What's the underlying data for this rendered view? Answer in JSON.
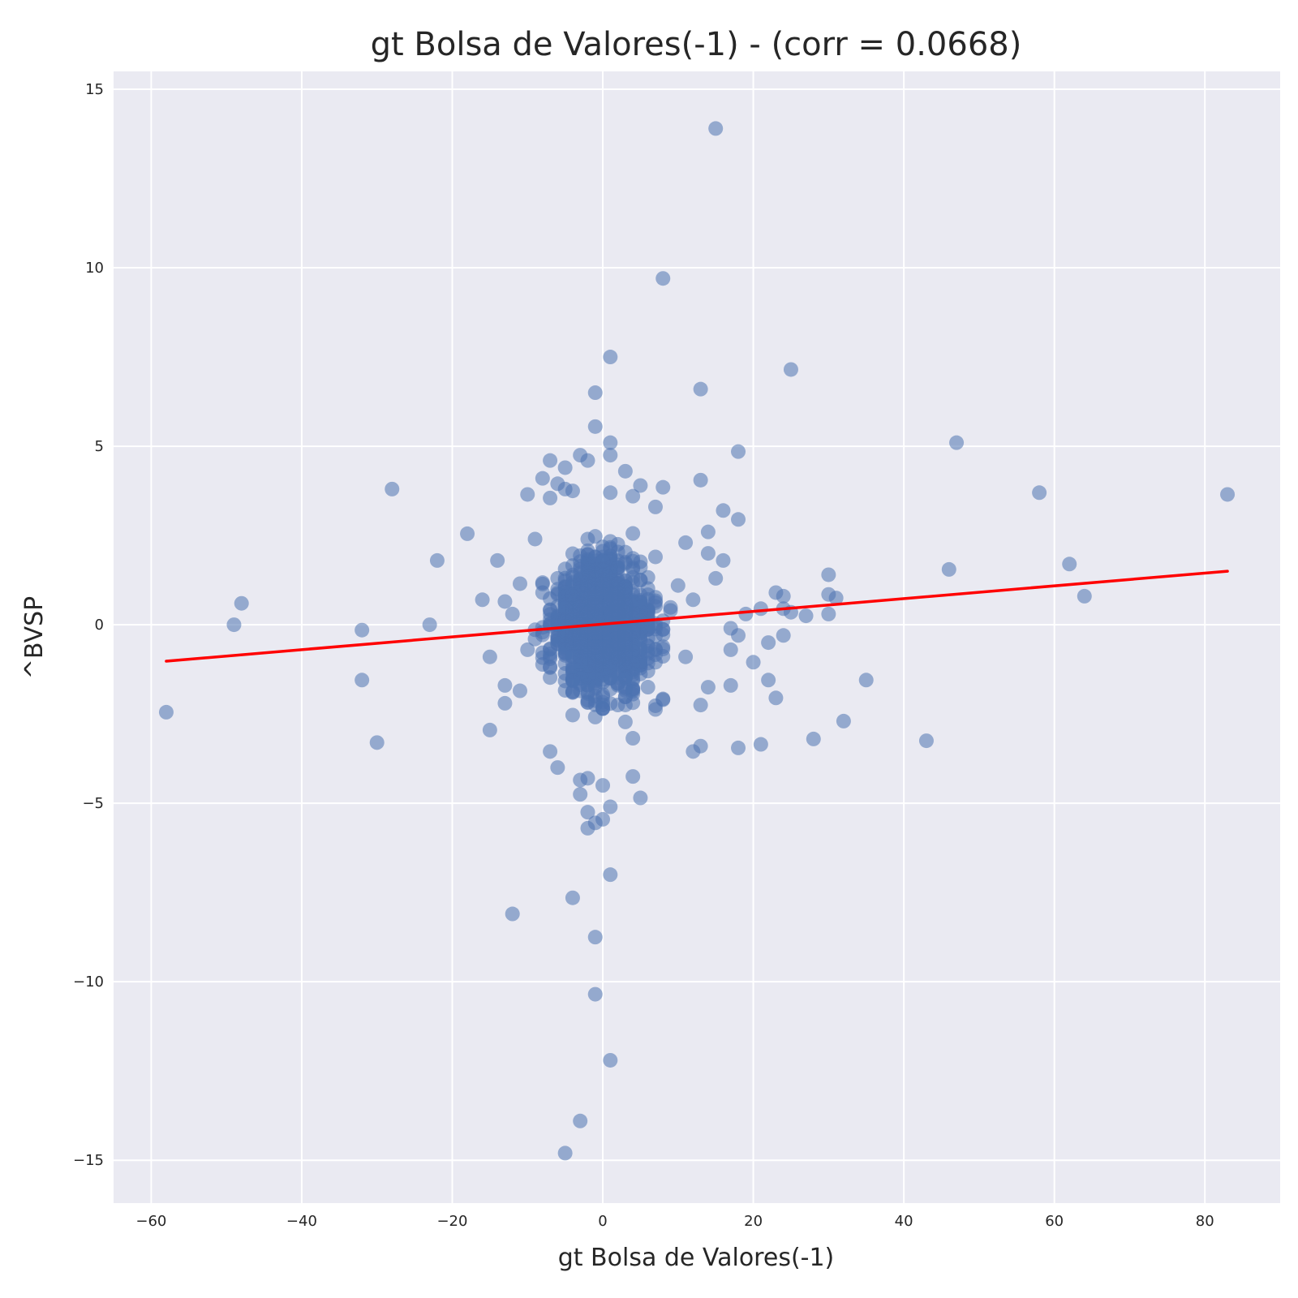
{
  "chart_data": {
    "type": "scatter",
    "title": "gt Bolsa de Valores(-1) - (corr = 0.0668)",
    "xlabel": "gt Bolsa de Valores(-1)",
    "ylabel": "^BVSP",
    "xlim": [
      -65,
      90
    ],
    "ylim": [
      -16.2,
      15.5
    ],
    "x_ticks": [
      -60,
      -40,
      -20,
      0,
      20,
      40,
      60,
      80
    ],
    "x_tick_labels": [
      "−60",
      "−40",
      "−20",
      "0",
      "20",
      "40",
      "60",
      "80"
    ],
    "y_ticks": [
      -15,
      -10,
      -5,
      0,
      5,
      10,
      15
    ],
    "y_tick_labels": [
      "−15",
      "−10",
      "−5",
      "0",
      "5",
      "10",
      "15"
    ],
    "grid": true,
    "background": "#eaeaf2",
    "point_color": "#4c72b0",
    "point_alpha": 0.55,
    "fit_line": {
      "color": "#ff0000",
      "x": [
        -58,
        83
      ],
      "y": [
        -1.02,
        1.5
      ]
    },
    "points": [
      [
        15,
        13.9
      ],
      [
        8,
        9.7
      ],
      [
        1,
        7.5
      ],
      [
        25,
        7.15
      ],
      [
        -1,
        6.5
      ],
      [
        13,
        6.6
      ],
      [
        -1,
        5.55
      ],
      [
        1,
        5.1
      ],
      [
        47,
        5.1
      ],
      [
        18,
        4.85
      ],
      [
        1,
        4.75
      ],
      [
        -3,
        4.75
      ],
      [
        -7,
        4.6
      ],
      [
        -2,
        4.6
      ],
      [
        -5,
        4.4
      ],
      [
        3,
        4.3
      ],
      [
        13,
        4.05
      ],
      [
        -8,
        4.1
      ],
      [
        -6,
        3.95
      ],
      [
        5,
        3.9
      ],
      [
        8,
        3.85
      ],
      [
        -28,
        3.8
      ],
      [
        -5,
        3.8
      ],
      [
        -4,
        3.75
      ],
      [
        58,
        3.7
      ],
      [
        1,
        3.7
      ],
      [
        -10,
        3.65
      ],
      [
        83,
        3.65
      ],
      [
        -7,
        3.55
      ],
      [
        4,
        3.6
      ],
      [
        7,
        3.3
      ],
      [
        16,
        3.2
      ],
      [
        18,
        2.95
      ],
      [
        -18,
        2.55
      ],
      [
        14,
        2.6
      ],
      [
        -9,
        2.4
      ],
      [
        11,
        2.3
      ],
      [
        -22,
        1.8
      ],
      [
        -14,
        1.8
      ],
      [
        16,
        1.8
      ],
      [
        62,
        1.7
      ],
      [
        14,
        2.0
      ],
      [
        -11,
        1.15
      ],
      [
        46,
        1.55
      ],
      [
        30,
        1.4
      ],
      [
        15,
        1.3
      ],
      [
        23,
        0.9
      ],
      [
        24,
        0.8
      ],
      [
        64,
        0.8
      ],
      [
        30,
        0.85
      ],
      [
        31,
        0.75
      ],
      [
        -16,
        0.7
      ],
      [
        -13,
        0.65
      ],
      [
        -48,
        0.6
      ],
      [
        24,
        0.45
      ],
      [
        21,
        0.45
      ],
      [
        25,
        0.35
      ],
      [
        27,
        0.25
      ],
      [
        30,
        0.3
      ],
      [
        19,
        0.3
      ],
      [
        -49,
        0.0
      ],
      [
        -23,
        0.0
      ],
      [
        -32,
        -0.15
      ],
      [
        17,
        -0.1
      ],
      [
        18,
        -0.3
      ],
      [
        24,
        -0.3
      ],
      [
        22,
        -0.5
      ],
      [
        17,
        -0.7
      ],
      [
        20,
        -1.05
      ],
      [
        -15,
        -0.9
      ],
      [
        -32,
        -1.55
      ],
      [
        22,
        -1.55
      ],
      [
        35,
        -1.55
      ],
      [
        17,
        -1.7
      ],
      [
        -13,
        -1.7
      ],
      [
        14,
        -1.75
      ],
      [
        -11,
        -1.85
      ],
      [
        23,
        -2.05
      ],
      [
        -13,
        -2.2
      ],
      [
        13,
        -2.25
      ],
      [
        -58,
        -2.45
      ],
      [
        -15,
        -2.95
      ],
      [
        32,
        -2.7
      ],
      [
        28,
        -3.2
      ],
      [
        43,
        -3.25
      ],
      [
        -30,
        -3.3
      ],
      [
        21,
        -3.35
      ],
      [
        13,
        -3.4
      ],
      [
        18,
        -3.45
      ],
      [
        12,
        -3.55
      ],
      [
        -7,
        -3.55
      ],
      [
        -6,
        -4.0
      ],
      [
        -3,
        -4.35
      ],
      [
        -2,
        -4.3
      ],
      [
        4,
        -4.25
      ],
      [
        -3,
        -4.75
      ],
      [
        0,
        -4.5
      ],
      [
        5,
        -4.85
      ],
      [
        1,
        -5.1
      ],
      [
        -2,
        -5.25
      ],
      [
        0,
        -5.45
      ],
      [
        -1,
        -5.55
      ],
      [
        -2,
        -5.7
      ],
      [
        1,
        -7.0
      ],
      [
        -4,
        -7.65
      ],
      [
        -12,
        -8.1
      ],
      [
        -1,
        -8.75
      ],
      [
        -1,
        -10.35
      ],
      [
        1,
        -12.2
      ],
      [
        -3,
        -13.9
      ],
      [
        -5,
        -14.8
      ],
      [
        0,
        0.5
      ],
      [
        1,
        -0.5
      ],
      [
        -1,
        1.2
      ],
      [
        2,
        -1.3
      ],
      [
        -2,
        0.2
      ],
      [
        3,
        0.9
      ],
      [
        -3,
        -0.8
      ],
      [
        4,
        1.6
      ],
      [
        -4,
        -1.9
      ],
      [
        5,
        0.1
      ],
      [
        -5,
        0.6
      ],
      [
        6,
        -0.6
      ],
      [
        -6,
        1.3
      ],
      [
        7,
        1.9
      ],
      [
        -7,
        -1.2
      ],
      [
        8,
        -2.1
      ],
      [
        -8,
        0.9
      ],
      [
        9,
        0.4
      ],
      [
        -9,
        -0.4
      ],
      [
        10,
        1.1
      ],
      [
        -10,
        -0.7
      ],
      [
        11,
        -0.9
      ],
      [
        12,
        0.7
      ],
      [
        -12,
        0.3
      ]
    ]
  }
}
